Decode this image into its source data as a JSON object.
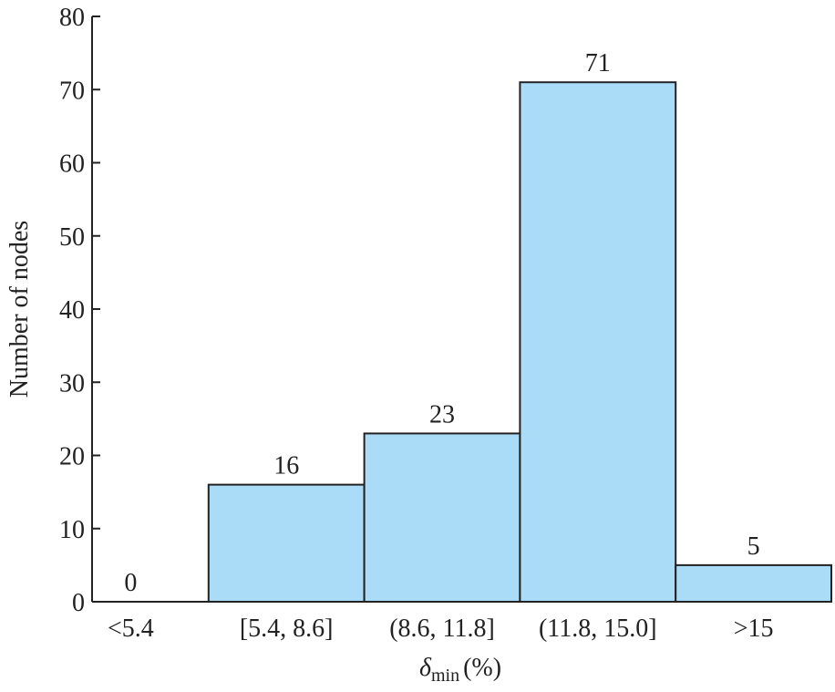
{
  "chart_data": {
    "type": "bar",
    "categories": [
      "<5.4",
      "[5.4, 8.6]",
      "(8.6, 11.8]",
      "(11.8, 15.0]",
      ">15"
    ],
    "values": [
      0,
      16,
      23,
      71,
      5
    ],
    "data_labels": [
      "0",
      "16",
      "23",
      "71",
      "5"
    ],
    "ylabel": "Number of nodes",
    "xlabel": {
      "symbol": "δ",
      "subscript": "min",
      "unit": "(%)"
    },
    "ylim": [
      0,
      80
    ],
    "yticks": [
      0,
      10,
      20,
      30,
      40,
      50,
      60,
      70,
      80
    ],
    "grid": false,
    "colors": {
      "bar_fill": "#aadcf7",
      "bar_stroke": "#222222",
      "axis": "#222222"
    }
  }
}
